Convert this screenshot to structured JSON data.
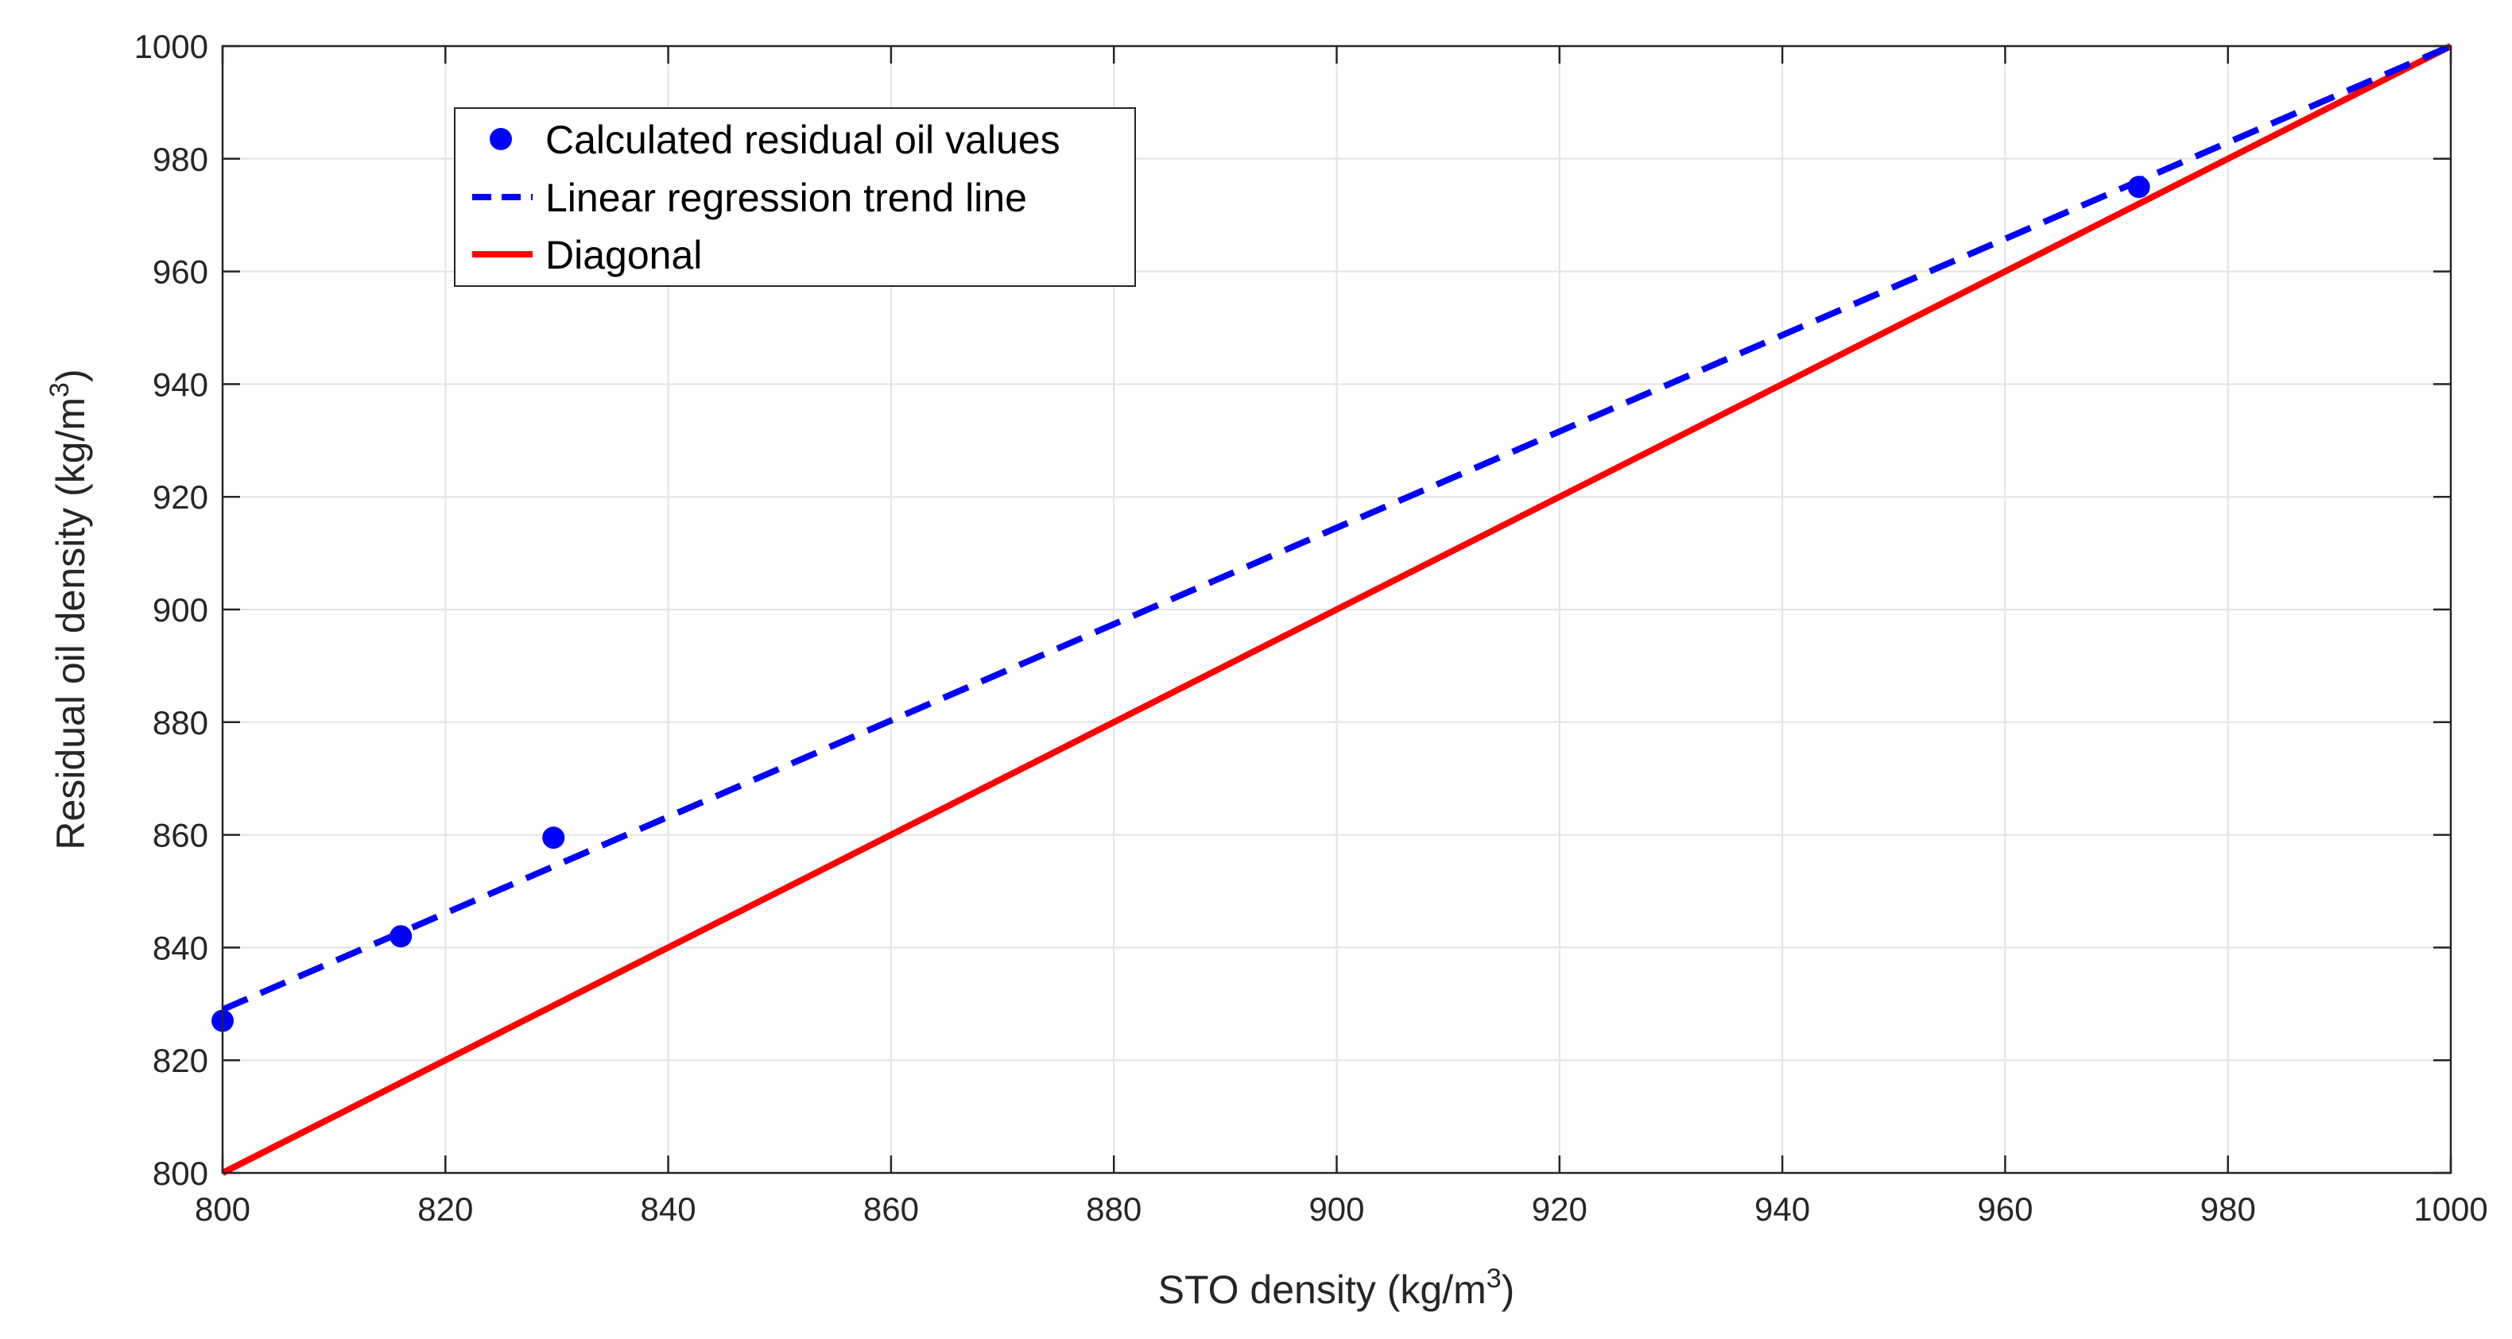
{
  "chart_data": {
    "type": "scatter",
    "title": "",
    "xlabel": {
      "prefix": "STO density (kg/m",
      "sup": "3",
      "suffix": ")"
    },
    "ylabel": {
      "prefix": "Residual oil density (kg/m",
      "sup": "3",
      "suffix": ")"
    },
    "xlim": [
      800,
      1000
    ],
    "ylim": [
      800,
      1000
    ],
    "xticks": [
      800,
      820,
      840,
      860,
      880,
      900,
      920,
      940,
      960,
      980,
      1000
    ],
    "yticks": [
      800,
      820,
      840,
      860,
      880,
      900,
      920,
      940,
      960,
      980,
      1000
    ],
    "xtick_labels": [
      "800",
      "820",
      "840",
      "860",
      "880",
      "900",
      "920",
      "940",
      "960",
      "980",
      "1000"
    ],
    "ytick_labels": [
      "800",
      "820",
      "840",
      "860",
      "880",
      "900",
      "920",
      "940",
      "960",
      "980",
      "1000"
    ],
    "grid": true,
    "legend_position": "top-left",
    "series": [
      {
        "name": "Calculated residual oil values",
        "style": "markers",
        "color": "#0000ff",
        "x": [
          800,
          816,
          829.7,
          972
        ],
        "y": [
          827,
          842,
          859.5,
          975
        ]
      },
      {
        "name": "Linear regression trend line",
        "style": "dashed",
        "color": "#0000ff",
        "x": [
          800,
          1000
        ],
        "y": [
          829,
          1000
        ]
      },
      {
        "name": "Diagonal",
        "style": "solid",
        "color": "#ff0000",
        "x": [
          800,
          1000
        ],
        "y": [
          800,
          1000
        ]
      }
    ]
  }
}
